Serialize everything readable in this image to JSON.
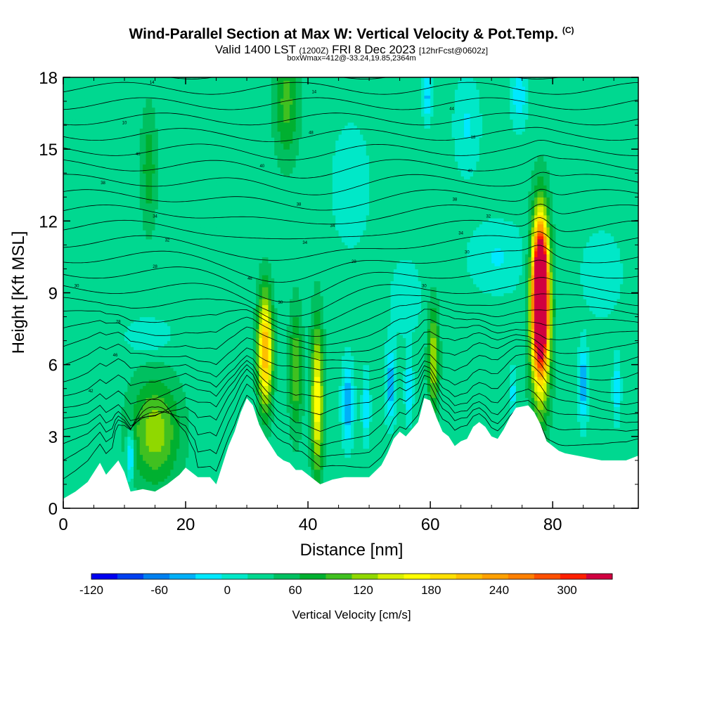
{
  "title": {
    "main": "Wind-Parallel Section at Max W: Vertical Velocity & Pot.Temp.",
    "copyright": "(C)",
    "valid_a": "Valid 1400 LST",
    "valid_utc": "(1200Z)",
    "valid_b": "FRI 8 Dec 2023",
    "forecast": "[12hrFcst@0602z]",
    "boxinfo": "boxWmax=412@-33.24,19.85,2364m"
  },
  "chart_data": {
    "type": "heatmap",
    "xlabel": "Distance [nm]",
    "ylabel": "Height [Kft MSL]",
    "xlim": [
      0,
      94
    ],
    "ylim": [
      0,
      18
    ],
    "x_ticks": [
      0,
      20,
      40,
      60,
      80
    ],
    "y_ticks": [
      0,
      3,
      6,
      9,
      12,
      15,
      18
    ],
    "colorbar": {
      "label": "Vertical Velocity [cm/s]",
      "min": -120,
      "max": 340,
      "step": 20,
      "tick_values": [
        -120,
        -60,
        0,
        60,
        120,
        180,
        240,
        300
      ],
      "tick_labels": [
        "-120",
        "-60",
        "0",
        "60",
        "120",
        "180",
        "240",
        "300"
      ],
      "colors": [
        "#0000f0",
        "#0040f0",
        "#0080f0",
        "#00b0f8",
        "#00e8ff",
        "#00e8c8",
        "#00d890",
        "#00c060",
        "#00b030",
        "#40c020",
        "#90d800",
        "#d8f000",
        "#ffff00",
        "#ffe000",
        "#ffc000",
        "#ffa000",
        "#ff8000",
        "#ff5000",
        "#ff2000",
        "#d00040"
      ]
    },
    "background_value": 8,
    "terrain": [
      [
        0,
        0.4
      ],
      [
        2,
        0.7
      ],
      [
        4,
        1.1
      ],
      [
        5,
        1.5
      ],
      [
        6,
        1.9
      ],
      [
        7,
        1.4
      ],
      [
        8,
        1.7
      ],
      [
        9,
        2.0
      ],
      [
        10,
        1.5
      ],
      [
        11,
        0.7
      ],
      [
        13,
        0.8
      ],
      [
        15,
        0.7
      ],
      [
        17,
        1.0
      ],
      [
        19,
        1.4
      ],
      [
        20,
        1.7
      ],
      [
        22,
        1.3
      ],
      [
        24,
        1.3
      ],
      [
        25,
        1.0
      ],
      [
        26,
        1.8
      ],
      [
        27,
        2.6
      ],
      [
        28,
        3.2
      ],
      [
        29,
        4.0
      ],
      [
        30,
        4.6
      ],
      [
        31,
        4.3
      ],
      [
        32,
        3.5
      ],
      [
        33,
        3.0
      ],
      [
        34,
        2.6
      ],
      [
        35,
        2.2
      ],
      [
        36,
        2.0
      ],
      [
        37,
        1.9
      ],
      [
        38,
        1.6
      ],
      [
        39,
        1.6
      ],
      [
        40,
        1.4
      ],
      [
        41,
        1.2
      ],
      [
        42,
        1.0
      ],
      [
        43,
        1.1
      ],
      [
        44,
        1.2
      ],
      [
        46,
        1.3
      ],
      [
        48,
        1.3
      ],
      [
        50,
        1.3
      ],
      [
        52,
        1.8
      ],
      [
        53,
        2.3
      ],
      [
        54,
        2.9
      ],
      [
        55,
        3.2
      ],
      [
        56,
        3.0
      ],
      [
        57,
        3.3
      ],
      [
        58,
        3.6
      ],
      [
        59,
        4.6
      ],
      [
        60,
        4.5
      ],
      [
        61,
        3.8
      ],
      [
        62,
        3.2
      ],
      [
        63,
        3.0
      ],
      [
        64,
        2.6
      ],
      [
        65,
        2.8
      ],
      [
        66,
        2.9
      ],
      [
        67,
        3.4
      ],
      [
        68,
        3.6
      ],
      [
        69,
        3.4
      ],
      [
        70,
        3.0
      ],
      [
        71,
        2.9
      ],
      [
        72,
        3.3
      ],
      [
        73,
        3.8
      ],
      [
        74,
        4.2
      ],
      [
        76,
        4.3
      ],
      [
        77,
        4.0
      ],
      [
        78,
        3.5
      ],
      [
        79,
        2.8
      ],
      [
        80,
        2.6
      ],
      [
        81,
        2.4
      ],
      [
        82,
        2.3
      ],
      [
        84,
        2.2
      ],
      [
        86,
        2.1
      ],
      [
        88,
        2.0
      ],
      [
        90,
        2.0
      ],
      [
        92,
        2.0
      ],
      [
        94,
        2.2
      ]
    ],
    "features": [
      {
        "x": 78,
        "y": 9.0,
        "rx": 1.1,
        "ry": 2.6,
        "w": 330
      },
      {
        "x": 78,
        "y": 8.2,
        "rx": 1.6,
        "ry": 3.8,
        "w": 200
      },
      {
        "x": 33,
        "y": 6.6,
        "rx": 1.2,
        "ry": 2.4,
        "w": 175
      },
      {
        "x": 41.5,
        "y": 4.6,
        "rx": 1.0,
        "ry": 3.2,
        "w": 130
      },
      {
        "x": 15,
        "y": 3.2,
        "rx": 4.0,
        "ry": 2.2,
        "w": 85
      },
      {
        "x": 38,
        "y": 5.8,
        "rx": 1.1,
        "ry": 2.6,
        "w": 70
      },
      {
        "x": 60.5,
        "y": 6.2,
        "rx": 0.9,
        "ry": 2.2,
        "w": 95
      },
      {
        "x": 36.5,
        "y": 17.0,
        "rx": 2.0,
        "ry": 2.5,
        "w": 60
      },
      {
        "x": 14,
        "y": 14.2,
        "rx": 1.3,
        "ry": 2.6,
        "w": 45
      },
      {
        "x": 11,
        "y": 2.2,
        "rx": 0.6,
        "ry": 1.0,
        "w": -75
      },
      {
        "x": 46.5,
        "y": 4.4,
        "rx": 0.9,
        "ry": 1.6,
        "w": -70
      },
      {
        "x": 53.5,
        "y": 5.2,
        "rx": 0.8,
        "ry": 1.5,
        "w": -65
      },
      {
        "x": 56.5,
        "y": 5.0,
        "rx": 0.6,
        "ry": 1.3,
        "w": -50
      },
      {
        "x": 49.5,
        "y": 4.2,
        "rx": 0.6,
        "ry": 1.4,
        "w": -45
      },
      {
        "x": 85,
        "y": 5.2,
        "rx": 0.7,
        "ry": 1.5,
        "w": -70
      },
      {
        "x": 90.5,
        "y": 5.0,
        "rx": 0.6,
        "ry": 1.3,
        "w": -45
      },
      {
        "x": 73.5,
        "y": 4.8,
        "rx": 0.5,
        "ry": 1.0,
        "w": -40
      },
      {
        "x": 59.5,
        "y": 17.2,
        "rx": 0.7,
        "ry": 1.0,
        "w": -55
      },
      {
        "x": 74.5,
        "y": 17.3,
        "rx": 1.2,
        "ry": 1.3,
        "w": -45
      },
      {
        "x": 71,
        "y": 10.5,
        "rx": 4.5,
        "ry": 1.4,
        "w": -30
      },
      {
        "x": 88,
        "y": 9.8,
        "rx": 3.0,
        "ry": 1.6,
        "w": -28
      },
      {
        "x": 14,
        "y": 7.2,
        "rx": 3.5,
        "ry": 0.7,
        "w": -30
      },
      {
        "x": 47,
        "y": 13.5,
        "rx": 3.0,
        "ry": 2.5,
        "w": -24
      },
      {
        "x": 56,
        "y": 8.8,
        "rx": 2.5,
        "ry": 1.6,
        "w": -22
      },
      {
        "x": 66,
        "y": 16.0,
        "rx": 2.0,
        "ry": 2.0,
        "w": -30
      }
    ],
    "theta_labels": [
      {
        "x": 14.5,
        "y": 17.8,
        "text": "14"
      },
      {
        "x": 41,
        "y": 17.4,
        "text": "14"
      },
      {
        "x": 63.5,
        "y": 16.7,
        "text": "44"
      },
      {
        "x": 10,
        "y": 16.1,
        "text": "10"
      },
      {
        "x": 40.5,
        "y": 15.7,
        "text": "48"
      },
      {
        "x": 67,
        "y": 15.5,
        "text": "18"
      },
      {
        "x": 12.2,
        "y": 14.8,
        "text": "40"
      },
      {
        "x": 32.5,
        "y": 14.3,
        "text": "40"
      },
      {
        "x": 66.5,
        "y": 14.1,
        "text": "40"
      },
      {
        "x": 6.5,
        "y": 13.6,
        "text": "38"
      },
      {
        "x": 64,
        "y": 12.9,
        "text": "38"
      },
      {
        "x": 38.5,
        "y": 12.7,
        "text": "38"
      },
      {
        "x": 15,
        "y": 12.2,
        "text": "34"
      },
      {
        "x": 69.5,
        "y": 12.2,
        "text": "32"
      },
      {
        "x": 44,
        "y": 11.8,
        "text": "34"
      },
      {
        "x": 65,
        "y": 11.5,
        "text": "34"
      },
      {
        "x": 17,
        "y": 11.2,
        "text": "32"
      },
      {
        "x": 39.5,
        "y": 11.1,
        "text": "34"
      },
      {
        "x": 66,
        "y": 10.7,
        "text": "30"
      },
      {
        "x": 15,
        "y": 10.1,
        "text": "28"
      },
      {
        "x": 47.5,
        "y": 10.3,
        "text": "28"
      },
      {
        "x": 2.2,
        "y": 9.3,
        "text": "30"
      },
      {
        "x": 30.5,
        "y": 9.6,
        "text": "46"
      },
      {
        "x": 59,
        "y": 9.3,
        "text": "30"
      },
      {
        "x": 35.5,
        "y": 8.6,
        "text": "30"
      },
      {
        "x": 9,
        "y": 7.8,
        "text": "28"
      },
      {
        "x": 8.5,
        "y": 6.4,
        "text": "46"
      },
      {
        "x": 4.5,
        "y": 4.9,
        "text": "42"
      }
    ]
  },
  "colorbar_label": "Vertical Velocity [cm/s]"
}
